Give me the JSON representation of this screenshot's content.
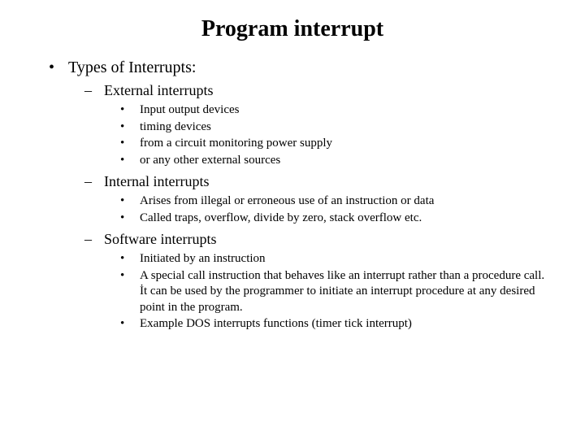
{
  "title": "Program interrupt",
  "lvl1_item": "Types of Interrupts:",
  "sections": {
    "external": {
      "heading": "External interrupts",
      "items": [
        "Input output devices",
        "timing devices",
        "from a circuit monitoring power supply",
        "or any other external sources"
      ]
    },
    "internal": {
      "heading": "Internal interrupts",
      "items": [
        "Arises from illegal or erroneous use of an instruction or data",
        "Called traps, overflow, divide by zero, stack overflow etc."
      ]
    },
    "software": {
      "heading": "Software interrupts",
      "items": [
        "Initiated by an instruction",
        "A special call instruction that behaves like an interrupt rather than a procedure call. İt can be used by the programmer to initiate an interrupt procedure at any desired point in the program.",
        "Example DOS interrupts functions (timer tick interrupt)"
      ]
    }
  },
  "style": {
    "background_color": "#ffffff",
    "text_color": "#000000",
    "title_fontsize": 28,
    "lvl1_fontsize": 20,
    "lvl2_fontsize": 18,
    "lvl3_fontsize": 15,
    "font_family": "Times New Roman"
  }
}
